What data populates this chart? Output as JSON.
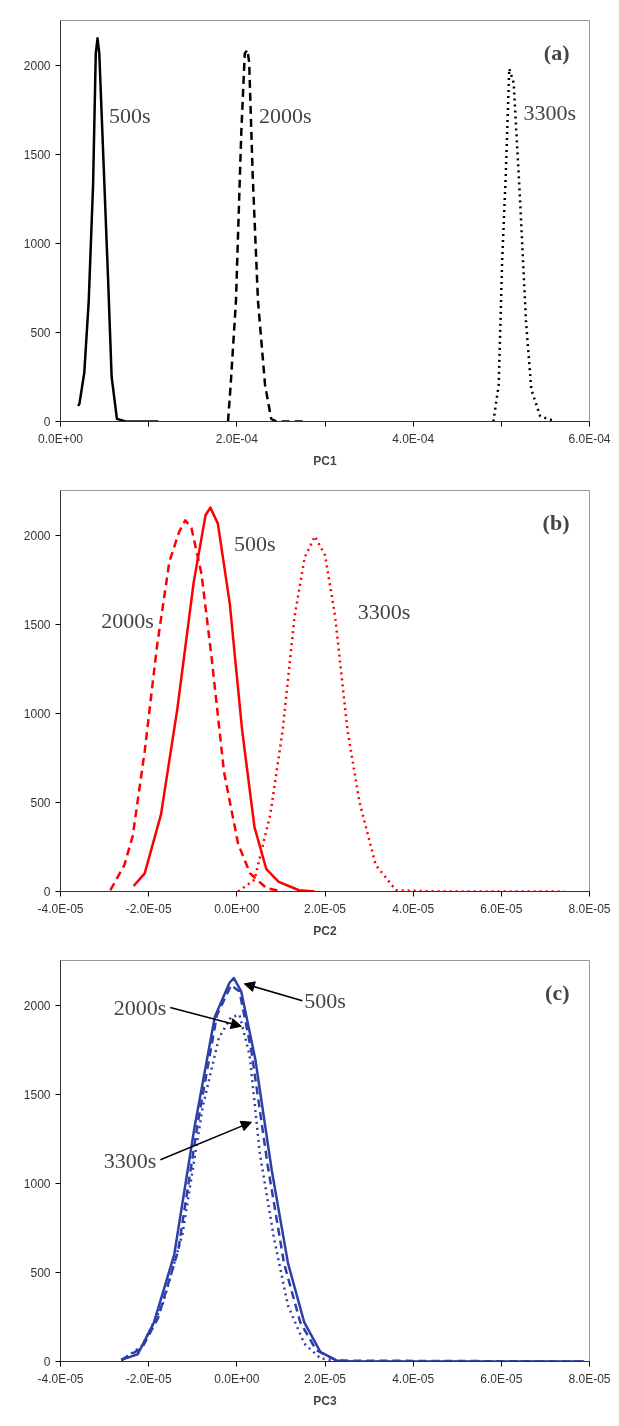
{
  "chart_data": [
    {
      "type": "line",
      "xlabel": "PC1",
      "grid": false,
      "xlim": [
        0,
        0.0006
      ],
      "ylim": [
        0,
        2250
      ],
      "xticks": [
        {
          "value": 0,
          "label": "0.0E+00"
        },
        {
          "value": 0.0001,
          "label": null
        },
        {
          "value": 0.0002,
          "label": "2.0E-04"
        },
        {
          "value": 0.0003,
          "label": null
        },
        {
          "value": 0.0004,
          "label": "4.0E-04"
        },
        {
          "value": 0.0005,
          "label": null
        },
        {
          "value": 0.0006,
          "label": "6.0E-04"
        }
      ],
      "yticks": [
        0,
        500,
        1000,
        1500,
        2000
      ],
      "series": [
        {
          "color": "#000000",
          "line_style": "solid",
          "x": [
            2e-05,
            2.15e-05,
            2.7e-05,
            3.2e-05,
            3.7e-05,
            4e-05,
            4.2e-05,
            4.4e-05,
            4.9e-05,
            5.4e-05,
            5.8e-05,
            6.4e-05,
            7.4e-05,
            0.000111
          ],
          "values": [
            87,
            100,
            275,
            675,
            1335,
            2065,
            2150,
            2065,
            1430,
            795,
            250,
            15,
            0,
            0
          ]
        },
        {
          "color": "#000000",
          "line_style": "dashed",
          "x": [
            0.00019,
            0.000193,
            0.000199,
            0.000205,
            0.000209,
            0.000212,
            0.000214,
            0.000218,
            0.000224,
            0.000232,
            0.000239,
            0.000245,
            0.000276
          ],
          "values": [
            0,
            205,
            675,
            1615,
            2065,
            2085,
            2015,
            1380,
            675,
            205,
            15,
            0,
            0
          ]
        },
        {
          "color": "#000000",
          "line_style": "dotted",
          "x": [
            0.000491,
            0.000497,
            0.000501,
            0.000505,
            0.000509,
            0.000514,
            0.000521,
            0.000528,
            0.000534,
            0.000544,
            0.000562
          ],
          "values": [
            0,
            205,
            910,
            1380,
            1980,
            1900,
            1265,
            560,
            180,
            30,
            0
          ]
        }
      ],
      "annotations": [
        "(a)",
        {
          "text": "500s",
          "x": 4.6e-05,
          "y": 1760
        },
        {
          "text": "2000s",
          "x": 0.000216,
          "y": 1760
        },
        {
          "text": "3300s",
          "x": 0.000516,
          "y": 1780
        }
      ]
    },
    {
      "type": "line",
      "xlabel": "PC2",
      "grid": false,
      "xlim": [
        -4e-05,
        8e-05
      ],
      "ylim": [
        0,
        2250
      ],
      "xticks": [
        {
          "value": -4e-05,
          "label": "-4.0E-05"
        },
        {
          "value": -2e-05,
          "label": "-2.0E-05"
        },
        {
          "value": 0,
          "label": "0.0E+00"
        },
        {
          "value": 2e-05,
          "label": "2.0E-05"
        },
        {
          "value": 4e-05,
          "label": "4.0E-05"
        },
        {
          "value": 6e-05,
          "label": "6.0E-05"
        },
        {
          "value": 8e-05,
          "label": "8.0E-05"
        }
      ],
      "yticks": [
        0,
        500,
        1000,
        1500,
        2000
      ],
      "series": [
        {
          "color": "#ff0000",
          "line_style": "solid",
          "x": [
            -2.34e-05,
            -2.09e-05,
            -1.72e-05,
            -1.35e-05,
            -9.8e-06,
            -7.1e-06,
            -6e-06,
            -4.3e-06,
            -1.6e-06,
            1.2e-06,
            4e-06,
            6.7e-06,
            9.5e-06,
            1.41e-05,
            1.77e-05
          ],
          "values": [
            31,
            102,
            433,
            1024,
            1733,
            2111,
            2154,
            2064,
            1615,
            905,
            362,
            125,
            54,
            7,
            0
          ]
        },
        {
          "color": "#ff0000",
          "line_style": "dashed",
          "x": [
            -2.87e-05,
            -2.55e-05,
            -2.36e-05,
            -2.09e-05,
            -1.81e-05,
            -1.53e-05,
            -1.31e-05,
            -1.17e-05,
            -1.03e-05,
            -8e-06,
            -5.7e-06,
            -2.9e-06,
            3e-07,
            3e-06,
            6.7e-06,
            1.04e-05
          ],
          "values": [
            7,
            149,
            314,
            787,
            1378,
            1851,
            2017,
            2083,
            2040,
            1780,
            1307,
            669,
            267,
            102,
            19,
            0
          ]
        },
        {
          "color": "#ff0000",
          "line_style": "dotted",
          "x": [
            3e-07,
            4e-06,
            7.6e-06,
            1.04e-05,
            1.31e-05,
            1.54e-05,
            1.77e-05,
            2e-05,
            2.23e-05,
            2.51e-05,
            2.78e-05,
            3.15e-05,
            3.61e-05,
            4.53e-05,
            6e-05,
            7.43e-05
          ],
          "values": [
            0,
            66,
            433,
            905,
            1544,
            1875,
            1993,
            1887,
            1544,
            905,
            504,
            149,
            7,
            0,
            0,
            0
          ]
        }
      ],
      "annotations": [
        "(b)",
        {
          "text": "500s",
          "x": -3.8e-06,
          "y": 2000
        },
        {
          "text": "2000s",
          "x": -1.7e-05,
          "y": 1567
        },
        {
          "text": "3300s",
          "x": 2.2e-05,
          "y": 1615
        }
      ]
    },
    {
      "type": "line",
      "xlabel": "PC3",
      "grid": false,
      "xlim": [
        -4e-05,
        8e-05
      ],
      "ylim": [
        0,
        2250
      ],
      "xticks": [
        {
          "value": -4e-05,
          "label": "-4.0E-05"
        },
        {
          "value": -2e-05,
          "label": "-2.0E-05"
        },
        {
          "value": 0,
          "label": "0.0E+00"
        },
        {
          "value": 2e-05,
          "label": "2.0E-05"
        },
        {
          "value": 4e-05,
          "label": "4.0E-05"
        },
        {
          "value": 6e-05,
          "label": "6.0E-05"
        },
        {
          "value": 8e-05,
          "label": "8.0E-05"
        }
      ],
      "yticks": [
        0,
        500,
        1000,
        1500,
        2000
      ],
      "series": [
        {
          "color": "#2f3fa8",
          "line_style": "solid",
          "x": [
            -2.62e-05,
            -2.25e-05,
            -1.88e-05,
            -1.42e-05,
            -9.6e-06,
            -5e-06,
            -1.7e-06,
            -7e-07,
            1e-06,
            4.2e-06,
            7.9e-06,
            1.16e-05,
            1.53e-05,
            1.9e-05,
            2.27e-05,
            2.63e-05,
            7.88e-05
          ],
          "values": [
            10,
            40,
            219,
            600,
            1314,
            1933,
            2124,
            2152,
            2076,
            1695,
            1076,
            552,
            219,
            52,
            5,
            0,
            0
          ]
        },
        {
          "color": "#2f3fa8",
          "line_style": "dashed",
          "x": [
            -2.62e-05,
            -2.15e-05,
            -1.79e-05,
            -1.33e-05,
            -8.7e-06,
            -4.5e-06,
            -1.3e-06,
            6e-07,
            3.3e-06,
            7e-06,
            1.07e-05,
            1.44e-05,
            1.8e-05,
            2.27e-05,
            7.88e-05
          ],
          "values": [
            10,
            76,
            243,
            624,
            1362,
            1945,
            2112,
            2076,
            1743,
            1100,
            552,
            219,
            64,
            5,
            0
          ]
        },
        {
          "color": "#2f3fa8",
          "line_style": "dotted",
          "x": [
            -2.62e-05,
            -2.15e-05,
            -1.69e-05,
            -1.23e-05,
            -7.7e-06,
            -4.1e-06,
            -1.3e-06,
            6e-07,
            2.9e-06,
            5.2e-06,
            8.4e-06,
            1.16e-05,
            1.53e-05,
            1.9e-05,
            2.36e-05,
            7.88e-05
          ],
          "values": [
            5,
            88,
            314,
            719,
            1433,
            1814,
            1933,
            1945,
            1719,
            1171,
            695,
            314,
            100,
            17,
            0,
            0
          ]
        }
      ],
      "annotations": [
        "(c)",
        {
          "text": "500s",
          "x": 1.7e-06,
          "y": 2119
        },
        {
          "text": "2000s",
          "x": 1e-06,
          "y": 1881
        },
        {
          "text": "3300s",
          "x": 3.3e-06,
          "y": 1343
        }
      ]
    }
  ]
}
